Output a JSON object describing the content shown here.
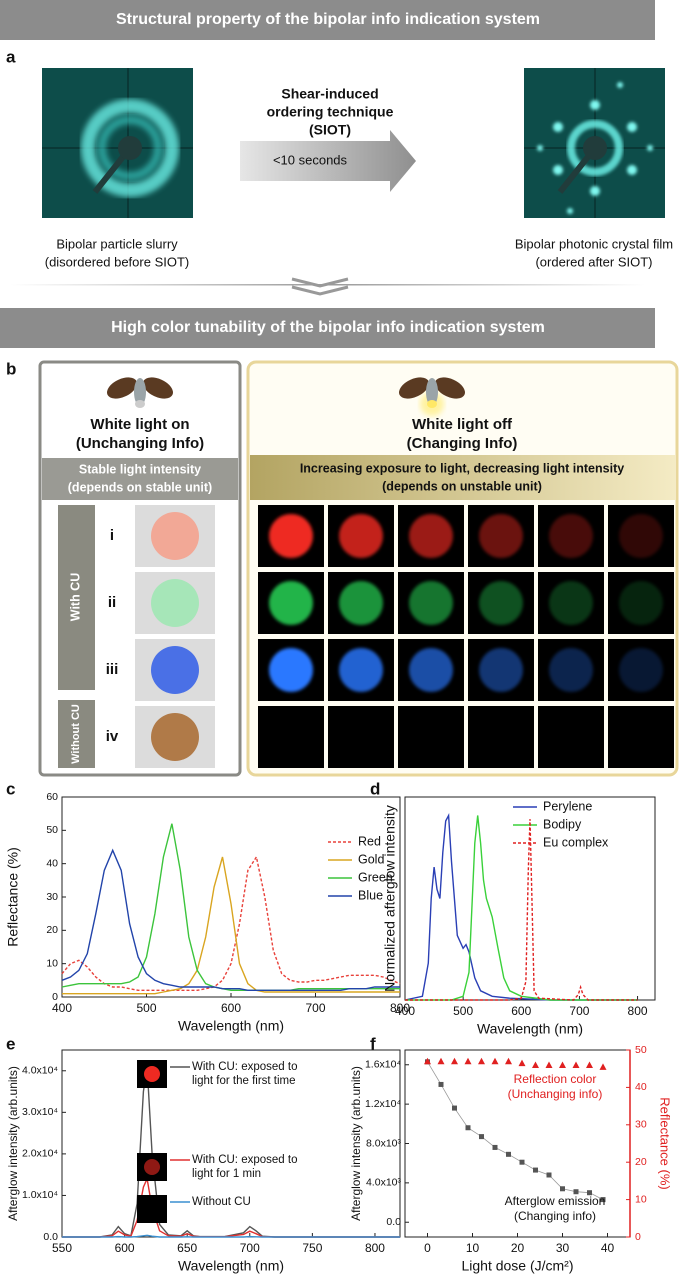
{
  "banners": [
    "Structural property of the bipolar info indication system",
    "High color tunability of the bipolar info indication system"
  ],
  "panel_labels": [
    "a",
    "b",
    "c",
    "d",
    "e",
    "f"
  ],
  "panel_a": {
    "left_caption": [
      "Bipolar particle slurry",
      "(disordered before SIOT)"
    ],
    "technique": [
      "Shear-induced",
      "ordering technique",
      "(SIOT)"
    ],
    "arrow_label": "<10 seconds",
    "right_caption": [
      "Bipolar photonic crystal film",
      "(ordered after SIOT)"
    ]
  },
  "panel_b": {
    "left": {
      "title": [
        "White light on",
        "(Unchanging Info)"
      ],
      "bar": [
        "Stable light intensity",
        "(depends on stable unit)"
      ],
      "groups": [
        "With CU",
        "Without CU"
      ],
      "rows": [
        "i",
        "ii",
        "iii",
        "iv"
      ]
    },
    "right": {
      "title": [
        "White light off",
        "(Changing Info)"
      ],
      "bar": [
        "Increasing exposure to light, decreasing light intensity",
        "(depends on unstable unit)"
      ]
    }
  },
  "chart_data": [
    {
      "type": "line",
      "xlabel": "Wavelength (nm)",
      "ylabel": "Reflectance (%)",
      "legend": "upper right",
      "x": [
        400,
        410,
        420,
        430,
        440,
        450,
        460,
        470,
        480,
        490,
        500,
        510,
        520,
        530,
        540,
        550,
        560,
        570,
        580,
        590,
        600,
        610,
        620,
        630,
        640,
        650,
        660,
        670,
        680,
        690,
        700,
        710,
        720,
        730,
        740,
        750,
        760,
        770,
        780,
        790,
        800
      ],
      "series": [
        {
          "name": "Red",
          "color": "#e8413a",
          "dash": true,
          "values": [
            7,
            10,
            11,
            9,
            6,
            4,
            3,
            3,
            2.5,
            2,
            2,
            2,
            2,
            2,
            2,
            2,
            2,
            2.5,
            3,
            5,
            10,
            22,
            38,
            42,
            30,
            14,
            7,
            5,
            4.5,
            4.5,
            5,
            5,
            5.5,
            6,
            6.5,
            6.5,
            6.5,
            6.5,
            6,
            5,
            4
          ]
        },
        {
          "name": "Gold",
          "color": "#d9a520",
          "values": [
            1,
            1,
            1,
            1,
            1,
            1,
            1,
            1,
            1,
            1,
            1,
            1,
            1.5,
            2,
            2.5,
            4,
            8,
            18,
            33,
            42,
            28,
            10,
            4,
            2,
            1.5,
            1.5,
            1.5,
            1.5,
            1.5,
            1.5,
            1.5,
            1.5,
            1.5,
            1.5,
            1.5,
            1.5,
            1.5,
            1.5,
            1.5,
            1.5,
            1.5
          ]
        },
        {
          "name": "Green",
          "color": "#3cc43c",
          "values": [
            3,
            3.5,
            4,
            4,
            4,
            4,
            4,
            4,
            4.5,
            6,
            12,
            25,
            42,
            52,
            38,
            18,
            8,
            4,
            3,
            2.5,
            2,
            2,
            2,
            2,
            2,
            2,
            2,
            2,
            2.5,
            2.5,
            2.5,
            2.5,
            2.5,
            2.5,
            2.5,
            2.5,
            2.5,
            2.5,
            2.5,
            2.5,
            2.5
          ]
        },
        {
          "name": "Blue",
          "color": "#2244aa",
          "values": [
            5,
            6,
            8,
            13,
            25,
            38,
            44,
            38,
            22,
            12,
            7,
            5,
            4,
            3.5,
            3,
            3,
            3,
            3,
            3,
            2.5,
            2.5,
            2.5,
            2,
            2,
            2,
            2,
            2,
            2,
            2,
            2,
            2,
            2,
            2,
            2,
            2.5,
            2.5,
            2.5,
            3,
            3,
            3,
            3
          ]
        }
      ],
      "xlim": [
        400,
        800
      ],
      "xticks": [
        400,
        500,
        600,
        700,
        800
      ],
      "ylim": [
        0,
        60
      ],
      "yticks": [
        0,
        10,
        20,
        30,
        40,
        50,
        60
      ]
    },
    {
      "type": "line",
      "xlabel": "Wavelength (nm)",
      "ylabel": "Normalized afterglow intensity",
      "legend": "upper right",
      "series": [
        {
          "name": "Perylene",
          "color": "#2a3fb5",
          "x": [
            400,
            430,
            440,
            445,
            450,
            455,
            460,
            465,
            470,
            475,
            480,
            490,
            500,
            505,
            510,
            520,
            530,
            550,
            580,
            650,
            800
          ],
          "values": [
            0,
            0.02,
            0.2,
            0.55,
            0.72,
            0.6,
            0.55,
            0.8,
            0.97,
            1,
            0.75,
            0.35,
            0.28,
            0.3,
            0.26,
            0.12,
            0.05,
            0.02,
            0.01,
            0,
            0
          ]
        },
        {
          "name": "Bodipy",
          "color": "#3ad13a",
          "x": [
            400,
            480,
            500,
            510,
            515,
            520,
            525,
            530,
            535,
            540,
            550,
            560,
            570,
            580,
            600,
            650,
            800
          ],
          "values": [
            0,
            0,
            0.02,
            0.15,
            0.5,
            0.85,
            1,
            0.85,
            0.65,
            0.55,
            0.45,
            0.28,
            0.12,
            0.05,
            0.02,
            0,
            0
          ]
        },
        {
          "name": "Eu complex",
          "color": "#e02020",
          "dash": true,
          "x": [
            400,
            580,
            600,
            608,
            612,
            615,
            618,
            622,
            630,
            690,
            698,
            702,
            706,
            715,
            800
          ],
          "values": [
            0,
            0,
            0.01,
            0.1,
            0.7,
            0.98,
            0.6,
            0.05,
            0.01,
            0,
            0.03,
            0.07,
            0.03,
            0,
            0
          ]
        }
      ],
      "xlim": [
        400,
        830
      ],
      "xticks": [
        400,
        500,
        600,
        700,
        800
      ],
      "ylim": [
        0,
        1.1
      ]
    },
    {
      "type": "line",
      "xlabel": "Wavelength (nm)",
      "ylabel": "Afterglow intensity (arb.units)",
      "legend": "inside",
      "x": [
        550,
        580,
        590,
        595,
        600,
        605,
        610,
        615,
        618,
        622,
        628,
        635,
        645,
        650,
        655,
        660,
        680,
        695,
        700,
        705,
        710,
        720,
        820
      ],
      "series": [
        {
          "name": "With CU: exposed to light for the first time",
          "color": "#555555",
          "values": [
            0,
            0,
            500,
            2500,
            800,
            300,
            8000,
            35000,
            41000,
            20000,
            3000,
            500,
            300,
            1500,
            300,
            100,
            100,
            1000,
            2500,
            1500,
            200,
            0,
            0
          ]
        },
        {
          "name": "With CU: exposed to light for 1 min",
          "color": "#e03030",
          "values": [
            0,
            0,
            300,
            1400,
            500,
            200,
            4000,
            12000,
            14000,
            7000,
            1500,
            300,
            200,
            800,
            200,
            80,
            80,
            600,
            1400,
            800,
            100,
            0,
            0
          ]
        },
        {
          "name": "Without CU",
          "color": "#3a8fd0",
          "values": [
            0,
            0,
            0,
            100,
            0,
            0,
            100,
            300,
            400,
            200,
            0,
            0,
            0,
            50,
            0,
            0,
            0,
            0,
            100,
            50,
            0,
            0,
            0
          ]
        }
      ],
      "xlim": [
        550,
        820
      ],
      "xticks": [
        550,
        600,
        650,
        700,
        750,
        800
      ],
      "ylim": [
        0,
        45000
      ],
      "yticks": [
        {
          "value": 0,
          "label": "0.0"
        },
        {
          "value": 10000,
          "label": "1.0x10⁴"
        },
        {
          "value": 20000,
          "label": "2.0x10⁴"
        },
        {
          "value": 30000,
          "label": "3.0x10⁴"
        },
        {
          "value": 40000,
          "label": "4.0x10⁴"
        }
      ]
    },
    {
      "type": "scatter",
      "xlabel": "Light dose (J/cm²)",
      "ylabel": "Afterglow intensity (arb.units)",
      "y2label": "Reflectance (%)",
      "x": [
        0,
        3,
        6,
        9,
        12,
        15,
        18,
        21,
        24,
        27,
        30,
        33,
        36,
        39
      ],
      "series": [
        {
          "name": "Afterglow emission",
          "name_note": "(Changing info)",
          "color": "#555555",
          "marker": "square",
          "connect": true,
          "values": [
            16300,
            14000,
            11600,
            9600,
            8700,
            7600,
            6900,
            6100,
            5300,
            4800,
            3400,
            3100,
            3000,
            2300
          ]
        },
        {
          "name": "Reflection color",
          "name_note": "(Unchanging info)",
          "color": "#e02020",
          "marker": "triangle",
          "axis": "y2",
          "values": [
            47,
            47,
            47,
            47,
            47,
            47,
            47,
            46.5,
            46,
            46,
            46,
            46,
            46,
            45.5
          ]
        }
      ],
      "xlim": [
        -5,
        45
      ],
      "xticks": [
        0,
        10,
        20,
        30,
        40
      ],
      "ylim": [
        -1500,
        17500
      ],
      "yticks": [
        {
          "value": 0,
          "label": "0.0"
        },
        {
          "value": 4000,
          "label": "4.0x10³"
        },
        {
          "value": 8000,
          "label": "8.0x10³"
        },
        {
          "value": 12000,
          "label": "1.2x10⁴"
        },
        {
          "value": 16000,
          "label": "1.6x10⁴"
        }
      ],
      "y2lim": [
        0,
        50
      ],
      "y2ticks": [
        0,
        10,
        20,
        30,
        40,
        50
      ]
    }
  ]
}
